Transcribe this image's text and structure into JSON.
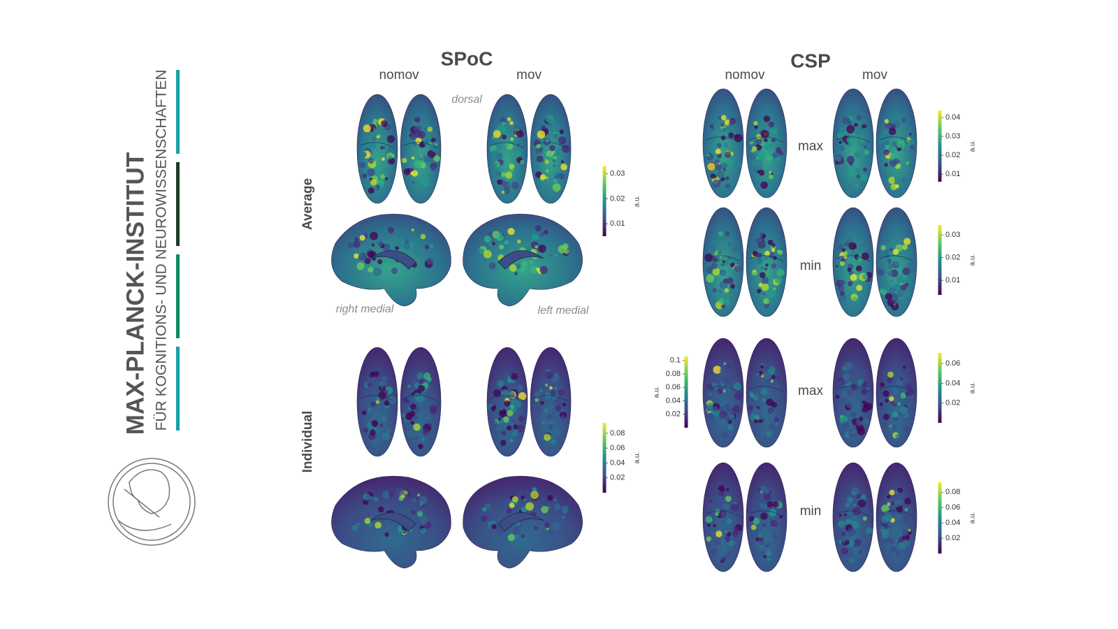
{
  "logo": {
    "title": "MAX-PLANCK-INSTITUT",
    "subtitle": "FÜR KOGNITIONS- UND NEUROWISSENSCHAFTEN"
  },
  "spoc": {
    "title": "SPoC",
    "columns": [
      "nomov",
      "mov"
    ],
    "view_top": "dorsal",
    "rows": [
      "Average",
      "Individual"
    ],
    "view_labels": [
      "right medial",
      "left medial"
    ],
    "colorbars": [
      {
        "label": "a.u.",
        "lim": [
          0.005,
          0.033
        ],
        "ticks": [
          0.01,
          0.02,
          0.03
        ]
      },
      {
        "label": "a.u.",
        "lim": [
          0,
          0.094
        ],
        "ticks": [
          0.02,
          0.04,
          0.06,
          0.08
        ]
      }
    ]
  },
  "csp": {
    "title": "CSP",
    "columns": [
      "nomov",
      "mov"
    ],
    "rows": [
      "max",
      "min",
      "max",
      "min"
    ],
    "colorbars": [
      {
        "label": "a.u.",
        "lim": [
          0.006,
          0.0437
        ],
        "ticks": [
          0.01,
          0.02,
          0.03,
          0.04
        ]
      },
      {
        "label": "a.u.",
        "lim": [
          0.0036,
          0.0343
        ],
        "ticks": [
          0.01,
          0.02,
          0.03
        ]
      },
      {
        "label": "a.u.",
        "lim": [
          0,
          0.106
        ],
        "ticks": [
          0.02,
          0.04,
          0.06,
          0.08,
          0.1
        ]
      },
      {
        "label": "a.u.",
        "lim": [
          0,
          0.0707
        ],
        "ticks": [
          0.02,
          0.04,
          0.06
        ]
      },
      {
        "label": "a.u.",
        "lim": [
          0,
          0.093
        ],
        "ticks": [
          0.02,
          0.04,
          0.06,
          0.08
        ]
      }
    ]
  }
}
